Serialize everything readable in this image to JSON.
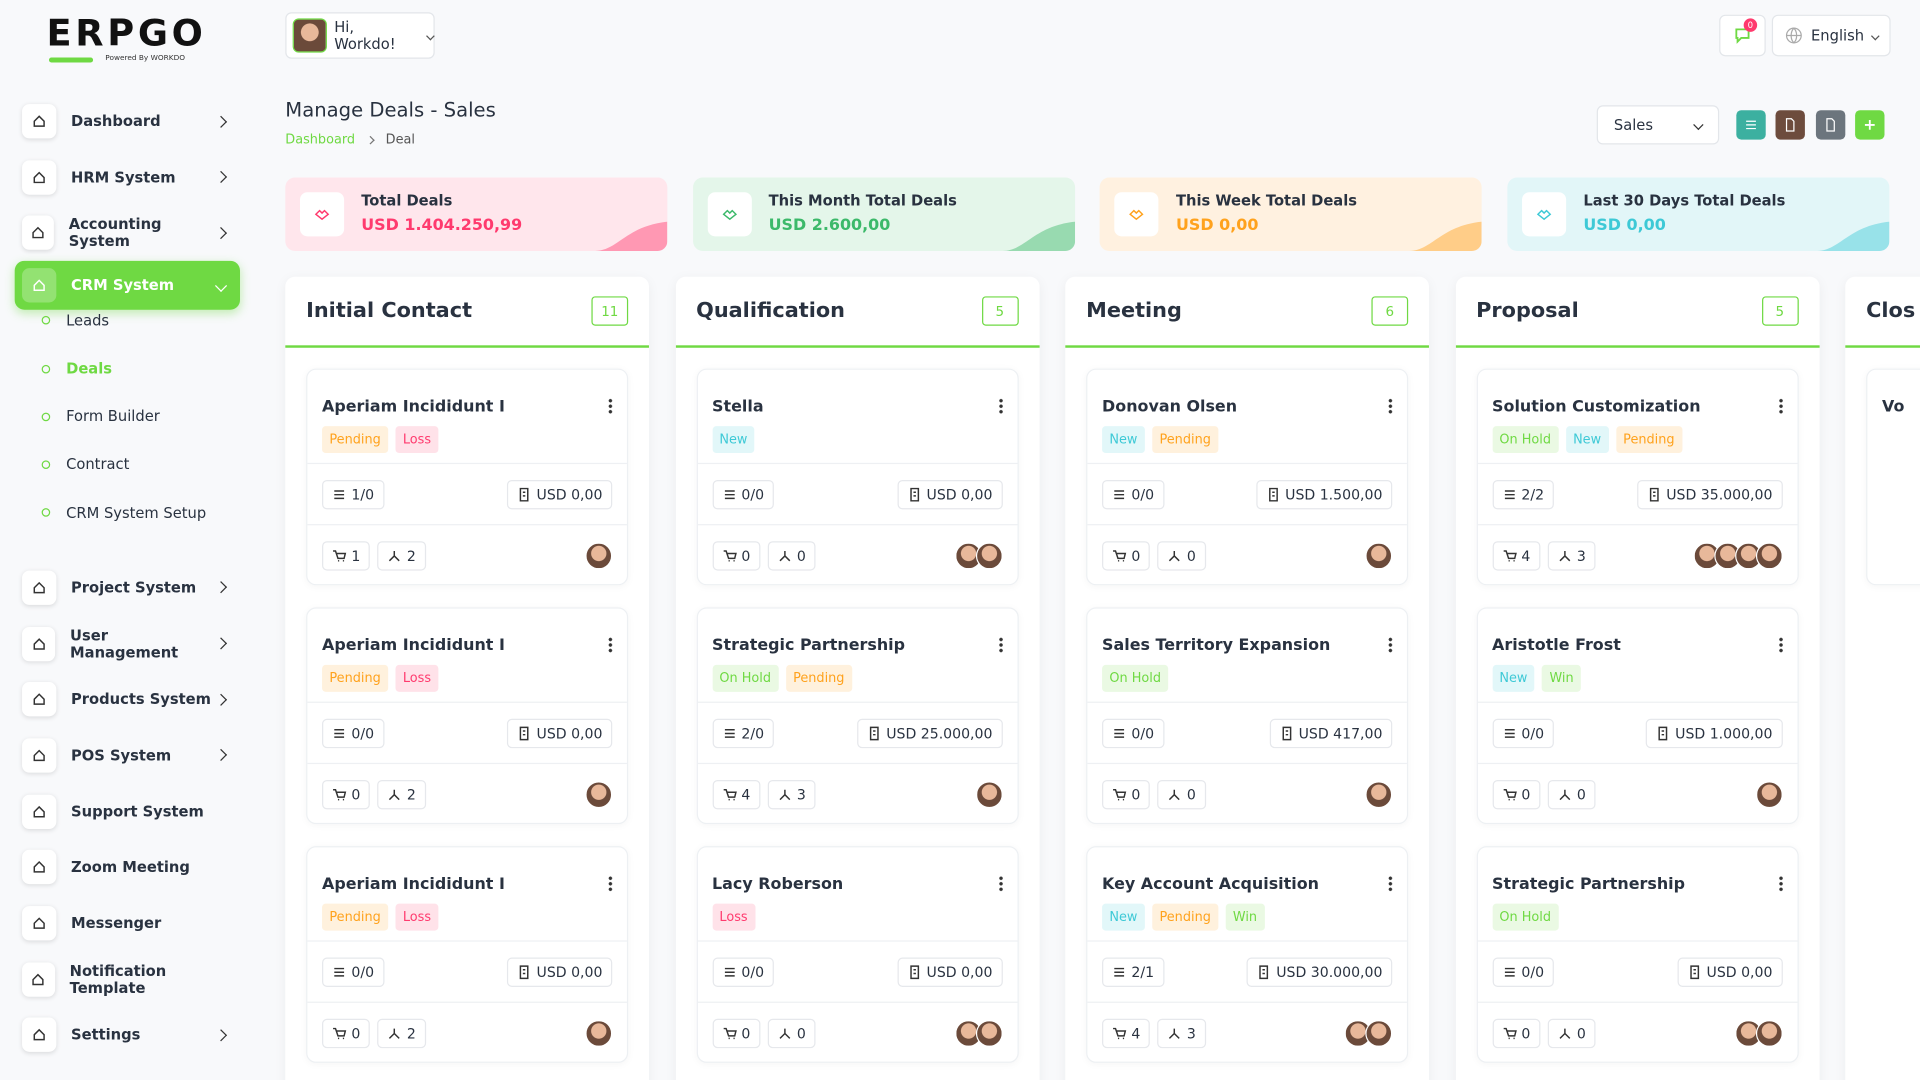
{
  "logo": {
    "text": "ERPGO",
    "tagline": "Powered By WORKDO"
  },
  "header": {
    "greeting": "Hi, Workdo!",
    "notifications": "0",
    "language": "English"
  },
  "sidebar": [
    {
      "label": "Dashboard",
      "submenu": true
    },
    {
      "label": "HRM System",
      "submenu": true
    },
    {
      "label": "Accounting System",
      "submenu": true
    },
    {
      "label": "CRM System",
      "submenu": true,
      "active": true,
      "children": [
        {
          "label": "Leads"
        },
        {
          "label": "Deals",
          "active": true
        },
        {
          "label": "Form Builder"
        },
        {
          "label": "Contract"
        },
        {
          "label": "CRM System Setup"
        }
      ]
    },
    {
      "label": "Project System",
      "submenu": true
    },
    {
      "label": "User Management",
      "submenu": true
    },
    {
      "label": "Products System",
      "submenu": true
    },
    {
      "label": "POS System",
      "submenu": true
    },
    {
      "label": "Support System"
    },
    {
      "label": "Zoom Meeting"
    },
    {
      "label": "Messenger"
    },
    {
      "label": "Notification Template"
    },
    {
      "label": "Settings",
      "submenu": true
    }
  ],
  "page": {
    "title": "Manage Deals - Sales",
    "breadcrumb": [
      "Dashboard",
      "Deal"
    ],
    "pipeline": "Sales"
  },
  "stats": [
    {
      "title": "Total Deals",
      "value": "USD 1.404.250,99",
      "color": "#ff3a6e",
      "bg": "#ffe6ec"
    },
    {
      "title": "This Month Total Deals",
      "value": "USD 2.600,00",
      "color": "#3cb96a",
      "bg": "#e4f6ea"
    },
    {
      "title": "This Week Total Deals",
      "value": "USD 0,00",
      "color": "#ffa21d",
      "bg": "#fff1e0"
    },
    {
      "title": "Last 30 Days Total Deals",
      "value": "USD 0,00",
      "color": "#3ec9d6",
      "bg": "#e2f6f8"
    }
  ],
  "columns": [
    {
      "name": "Initial Contact",
      "count": "11",
      "cards": [
        {
          "title": "Aperiam Incididunt I",
          "tags": [
            {
              "text": "Pending",
              "color": "#ffa21d"
            },
            {
              "text": "Loss",
              "color": "#ff3a6e"
            }
          ],
          "tasks": "1/0",
          "price": "USD 0,00",
          "products": "1",
          "sources": "2",
          "users": 1
        },
        {
          "title": "Aperiam Incididunt I",
          "tags": [
            {
              "text": "Pending",
              "color": "#ffa21d"
            },
            {
              "text": "Loss",
              "color": "#ff3a6e"
            }
          ],
          "tasks": "0/0",
          "price": "USD 0,00",
          "products": "0",
          "sources": "2",
          "users": 1
        },
        {
          "title": "Aperiam Incididunt I",
          "tags": [
            {
              "text": "Pending",
              "color": "#ffa21d"
            },
            {
              "text": "Loss",
              "color": "#ff3a6e"
            }
          ],
          "tasks": "0/0",
          "price": "USD 0,00",
          "products": "0",
          "sources": "2",
          "users": 1
        }
      ]
    },
    {
      "name": "Qualification",
      "count": "5",
      "cards": [
        {
          "title": "Stella",
          "tags": [
            {
              "text": "New",
              "color": "#3ec9d6"
            }
          ],
          "tasks": "0/0",
          "price": "USD 0,00",
          "products": "0",
          "sources": "0",
          "users": 2
        },
        {
          "title": "Strategic Partnership",
          "tags": [
            {
              "text": "On Hold",
              "color": "#6fd943"
            },
            {
              "text": "Pending",
              "color": "#ffa21d"
            }
          ],
          "tasks": "2/0",
          "price": "USD 25.000,00",
          "products": "4",
          "sources": "3",
          "users": 1
        },
        {
          "title": "Lacy Roberson",
          "tags": [
            {
              "text": "Loss",
              "color": "#ff3a6e"
            }
          ],
          "tasks": "0/0",
          "price": "USD 0,00",
          "products": "0",
          "sources": "0",
          "users": 2
        }
      ]
    },
    {
      "name": "Meeting",
      "count": "6",
      "cards": [
        {
          "title": "Donovan Olsen",
          "tags": [
            {
              "text": "New",
              "color": "#3ec9d6"
            },
            {
              "text": "Pending",
              "color": "#ffa21d"
            }
          ],
          "tasks": "0/0",
          "price": "USD 1.500,00",
          "products": "0",
          "sources": "0",
          "users": 1
        },
        {
          "title": "Sales Territory Expansion",
          "tags": [
            {
              "text": "On Hold",
              "color": "#6fd943"
            }
          ],
          "tasks": "0/0",
          "price": "USD 417,00",
          "products": "0",
          "sources": "0",
          "users": 1
        },
        {
          "title": "Key Account Acquisition",
          "tags": [
            {
              "text": "New",
              "color": "#3ec9d6"
            },
            {
              "text": "Pending",
              "color": "#ffa21d"
            },
            {
              "text": "Win",
              "color": "#6fd943"
            }
          ],
          "tasks": "2/1",
          "price": "USD 30.000,00",
          "products": "4",
          "sources": "3",
          "users": 2
        }
      ]
    },
    {
      "name": "Proposal",
      "count": "5",
      "cards": [
        {
          "title": "Solution Customization",
          "tags": [
            {
              "text": "On Hold",
              "color": "#6fd943"
            },
            {
              "text": "New",
              "color": "#3ec9d6"
            },
            {
              "text": "Pending",
              "color": "#ffa21d"
            }
          ],
          "tasks": "2/2",
          "price": "USD 35.000,00",
          "products": "4",
          "sources": "3",
          "users": 4
        },
        {
          "title": "Aristotle Frost",
          "tags": [
            {
              "text": "New",
              "color": "#3ec9d6"
            },
            {
              "text": "Win",
              "color": "#6fd943"
            }
          ],
          "tasks": "0/0",
          "price": "USD 1.000,00",
          "products": "0",
          "sources": "0",
          "users": 1
        },
        {
          "title": "Strategic Partnership",
          "tags": [
            {
              "text": "On Hold",
              "color": "#6fd943"
            }
          ],
          "tasks": "0/0",
          "price": "USD 0,00",
          "products": "0",
          "sources": "0",
          "users": 2
        }
      ]
    },
    {
      "name": "Clos",
      "cards": [
        {
          "title": "Vo"
        }
      ]
    }
  ]
}
